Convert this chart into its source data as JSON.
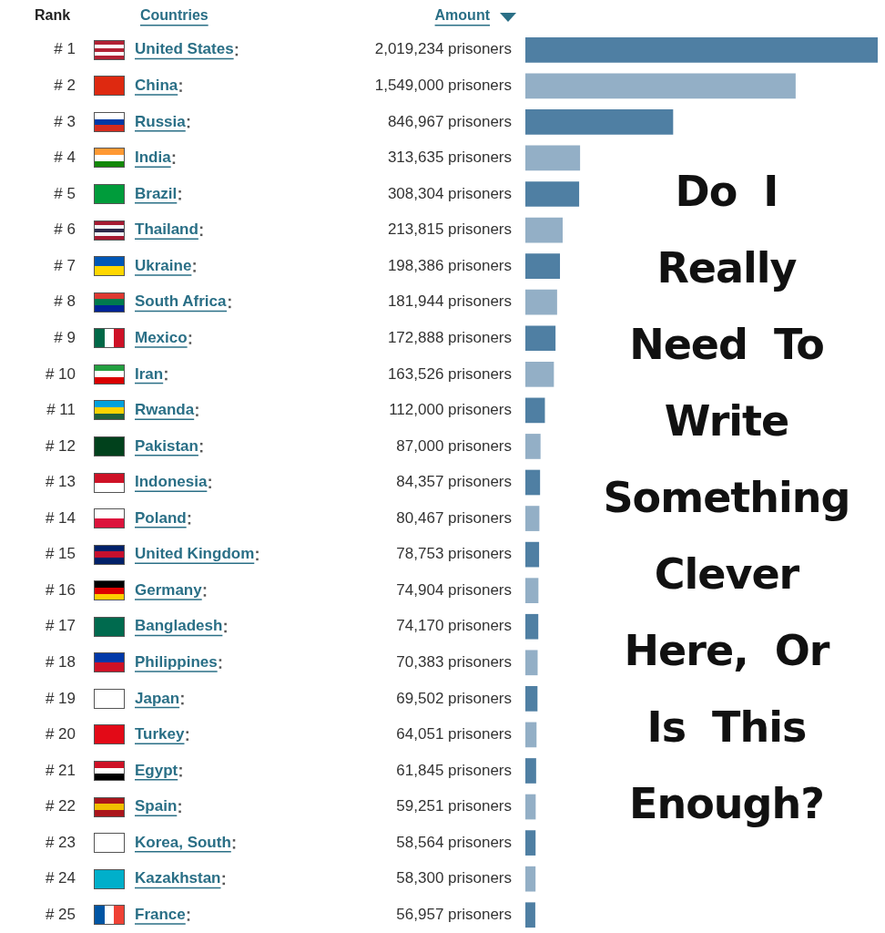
{
  "chart_data": {
    "type": "bar",
    "orientation": "horizontal",
    "title": "Do I Really Need To Write Something Clever Here, Or Is This Enough?",
    "categories": [
      "United States",
      "China",
      "Russia",
      "India",
      "Brazil",
      "Thailand",
      "Ukraine",
      "South Africa",
      "Mexico",
      "Iran",
      "Rwanda",
      "Pakistan",
      "Indonesia",
      "Poland",
      "United Kingdom",
      "Germany",
      "Bangladesh",
      "Philippines",
      "Japan",
      "Turkey",
      "Egypt",
      "Spain",
      "Korea, South",
      "Kazakhstan",
      "France"
    ],
    "values": [
      2019234,
      1549000,
      846967,
      313635,
      308304,
      213815,
      198386,
      181944,
      172888,
      163526,
      112000,
      87000,
      84357,
      80467,
      78753,
      74904,
      74170,
      70383,
      69502,
      64051,
      61845,
      59251,
      58564,
      58300,
      56957
    ],
    "value_labels": [
      "2,019,234 prisoners",
      "1,549,000 prisoners",
      "846,967 prisoners",
      "313,635 prisoners",
      "308,304 prisoners",
      "213,815 prisoners",
      "198,386 prisoners",
      "181,944 prisoners",
      "172,888 prisoners",
      "163,526 prisoners",
      "112,000 prisoners",
      "87,000 prisoners",
      "84,357 prisoners",
      "80,467 prisoners",
      "78,753 prisoners",
      "74,904 prisoners",
      "74,170 prisoners",
      "70,383 prisoners",
      "69,502 prisoners",
      "64,051 prisoners",
      "61,845 prisoners",
      "59,251 prisoners",
      "58,564 prisoners",
      "58,300 prisoners",
      "56,957 prisoners"
    ],
    "colors": [
      "#4f7fa3",
      "#93afc6",
      "#4f7fa3",
      "#93afc6",
      "#4f7fa3",
      "#93afc6",
      "#4f7fa3",
      "#93afc6",
      "#4f7fa3",
      "#93afc6",
      "#4f7fa3",
      "#93afc6",
      "#4f7fa3",
      "#93afc6",
      "#4f7fa3",
      "#93afc6",
      "#4f7fa3",
      "#93afc6",
      "#4f7fa3",
      "#93afc6",
      "#4f7fa3",
      "#93afc6",
      "#4f7fa3",
      "#93afc6",
      "#4f7fa3"
    ],
    "annotations": [
      "Rank",
      "Countries",
      "Amount",
      "# 1",
      "# 2",
      "# 3",
      "# 4",
      "# 5",
      "# 6",
      "# 7",
      "# 8",
      "# 9",
      "# 10",
      "# 11",
      "# 12",
      "# 13",
      "# 14",
      "# 15",
      "# 16",
      "# 17",
      "# 18",
      "# 19",
      "# 20",
      "# 21",
      "# 22",
      "# 23",
      "# 24",
      "# 25"
    ],
    "legend": false
  }
}
